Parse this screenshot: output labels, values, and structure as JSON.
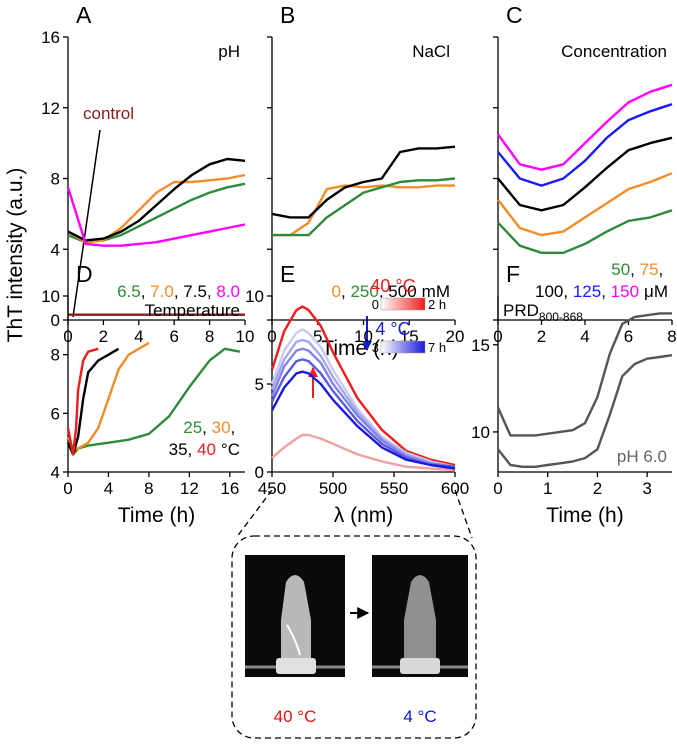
{
  "shared_ylabel": "ThT intensity (a.u.)",
  "shared_xlabel": "Time (h)",
  "chart_data": [
    {
      "type": "line",
      "label": "A",
      "tag": "pH",
      "legend_separator": ", ",
      "x": [
        0,
        1,
        2,
        3,
        4,
        5,
        6,
        7,
        8,
        9,
        10
      ],
      "series": [
        {
          "name": "6.5",
          "color": "#2e8b3a",
          "values": [
            4.8,
            4.4,
            4.5,
            4.8,
            5.3,
            5.8,
            6.3,
            6.8,
            7.2,
            7.5,
            7.7
          ]
        },
        {
          "name": "7.0",
          "color": "#f28c28",
          "values": [
            5.0,
            4.4,
            4.5,
            5.2,
            6.2,
            7.2,
            7.8,
            7.8,
            7.9,
            8.0,
            8.2
          ]
        },
        {
          "name": "7.5",
          "color": "#000000",
          "values": [
            5.0,
            4.5,
            4.6,
            5.0,
            5.6,
            6.5,
            7.4,
            8.2,
            8.8,
            9.1,
            9.0
          ]
        },
        {
          "name": "8.0",
          "color": "#ff00ff",
          "values": [
            7.5,
            4.3,
            4.2,
            4.2,
            4.3,
            4.4,
            4.6,
            4.8,
            5.0,
            5.2,
            5.4
          ]
        },
        {
          "name": "control",
          "color": "#8b1a1a",
          "values": [
            0.3,
            0.3,
            0.3,
            0.3,
            0.3,
            0.3,
            0.3,
            0.3,
            0.3,
            0.3,
            0.3
          ]
        }
      ],
      "xlim": [
        0,
        10
      ],
      "xticks": [
        0,
        2,
        4,
        6,
        8,
        10
      ],
      "ylim": [
        0,
        16
      ],
      "yticks": [
        0,
        4,
        8,
        12,
        16
      ]
    },
    {
      "type": "line",
      "label": "B",
      "tag": "NaCl",
      "legend_separator": ", ",
      "legend_unit": "mM",
      "x": [
        0,
        2,
        4,
        6,
        8,
        10,
        12,
        14,
        16,
        18,
        20
      ],
      "series": [
        {
          "name": "0",
          "color": "#f28c28",
          "values": [
            4.8,
            4.8,
            5.5,
            7.4,
            7.6,
            7.5,
            7.6,
            7.5,
            7.5,
            7.6,
            7.6
          ]
        },
        {
          "name": "250",
          "color": "#2e8b3a",
          "values": [
            4.8,
            4.8,
            4.8,
            5.8,
            6.5,
            7.2,
            7.5,
            7.8,
            7.9,
            7.9,
            8.0
          ]
        },
        {
          "name": "500",
          "color": "#000000",
          "values": [
            6.0,
            5.8,
            5.8,
            6.8,
            7.5,
            7.8,
            8.0,
            9.5,
            9.7,
            9.7,
            9.8
          ]
        }
      ],
      "xlim": [
        0,
        20
      ],
      "xticks": [
        0,
        5,
        10,
        15,
        20
      ],
      "ylim": [
        0,
        16
      ],
      "yticks": [
        0,
        4,
        8,
        12,
        16
      ],
      "ytick_labels": false
    },
    {
      "type": "line",
      "label": "C",
      "tag": "Concentration",
      "legend_separator": ", ",
      "legend_unit": "μM",
      "x": [
        0,
        1,
        2,
        3,
        4,
        5,
        6,
        7,
        8
      ],
      "series": [
        {
          "name": "50",
          "color": "#2e8b3a",
          "values": [
            5.5,
            4.2,
            3.8,
            3.8,
            4.3,
            5.0,
            5.6,
            5.8,
            6.2
          ]
        },
        {
          "name": "75",
          "color": "#f28c28",
          "values": [
            6.8,
            5.2,
            4.8,
            5.0,
            5.8,
            6.6,
            7.4,
            7.8,
            8.3
          ]
        },
        {
          "name": "100",
          "color": "#000000",
          "values": [
            8.0,
            6.5,
            6.2,
            6.5,
            7.5,
            8.6,
            9.6,
            10.0,
            10.3
          ]
        },
        {
          "name": "125",
          "color": "#1a1aff",
          "values": [
            9.5,
            8.0,
            7.6,
            8.0,
            9.0,
            10.3,
            11.3,
            11.8,
            12.2
          ]
        },
        {
          "name": "150",
          "color": "#ff00ff",
          "values": [
            10.5,
            8.8,
            8.5,
            8.8,
            10.0,
            11.2,
            12.3,
            12.9,
            13.3
          ]
        }
      ],
      "xlim": [
        0,
        8
      ],
      "xticks": [
        0,
        2,
        4,
        6,
        8
      ],
      "ylim": [
        0,
        16
      ],
      "yticks": [
        0,
        4,
        8,
        12,
        16
      ],
      "ytick_labels": false
    },
    {
      "type": "line",
      "label": "D",
      "tag": "Temperature",
      "legend_separator": ", ",
      "legend_unit": "°C",
      "xlabel": "Time (h)",
      "series": [
        {
          "name": "25",
          "color": "#2e8b3a",
          "x": [
            0,
            0.5,
            1,
            2,
            4,
            6,
            8,
            10,
            12,
            14,
            15.5,
            17
          ],
          "values": [
            5.0,
            4.6,
            4.8,
            4.9,
            5.0,
            5.1,
            5.3,
            5.9,
            6.9,
            7.8,
            8.2,
            8.1
          ]
        },
        {
          "name": "30",
          "color": "#f28c28",
          "x": [
            0,
            0.5,
            1,
            2,
            3,
            4,
            5,
            6,
            7,
            8
          ],
          "values": [
            5.2,
            4.8,
            4.8,
            5.0,
            5.5,
            6.5,
            7.5,
            8.0,
            8.2,
            8.4
          ]
        },
        {
          "name": "35",
          "color": "#000000",
          "x": [
            0,
            0.5,
            1,
            1.5,
            2,
            3,
            4,
            5
          ],
          "values": [
            5.0,
            4.6,
            5.2,
            6.5,
            7.4,
            7.8,
            8.0,
            8.2
          ]
        },
        {
          "name": "40",
          "color": "#ee1c1c",
          "x": [
            0,
            0.5,
            0.8,
            1,
            1.5,
            2,
            3
          ],
          "values": [
            5.5,
            4.6,
            5.5,
            6.8,
            7.8,
            8.1,
            8.2
          ]
        }
      ],
      "xlim": [
        0,
        17.5
      ],
      "xticks": [
        0,
        4,
        8,
        12,
        16
      ],
      "ylim": [
        4,
        10
      ],
      "yticks": [
        4,
        6,
        8,
        10
      ]
    },
    {
      "type": "line",
      "label": "E",
      "xlabel": "λ (nm)",
      "x": [
        450,
        460,
        470,
        475,
        480,
        490,
        500,
        520,
        540,
        560,
        580,
        600
      ],
      "series": [
        {
          "color": "#ee1c1c",
          "values": [
            5.8,
            8.0,
            9.2,
            9.4,
            9.2,
            8.3,
            6.8,
            4.2,
            2.4,
            1.2,
            0.7,
            0.4
          ]
        },
        {
          "color": "#f0a0a0",
          "values": [
            0.8,
            1.4,
            1.9,
            2.1,
            2.1,
            1.9,
            1.6,
            1.0,
            0.6,
            0.3,
            0.2,
            0.1
          ]
        },
        {
          "color": "#c9c9f5",
          "values": [
            5.0,
            6.9,
            7.9,
            8.1,
            7.9,
            7.1,
            5.8,
            3.6,
            2.0,
            1.1,
            0.6,
            0.3
          ]
        },
        {
          "color": "#a6a6ef",
          "values": [
            4.7,
            6.4,
            7.4,
            7.5,
            7.4,
            6.6,
            5.4,
            3.4,
            1.9,
            1.0,
            0.5,
            0.3
          ]
        },
        {
          "color": "#8383e8",
          "values": [
            4.3,
            6.0,
            6.9,
            7.0,
            6.9,
            6.2,
            5.0,
            3.2,
            1.8,
            0.9,
            0.5,
            0.3
          ]
        },
        {
          "color": "#5a5ae2",
          "values": [
            4.0,
            5.4,
            6.3,
            6.4,
            6.3,
            5.6,
            4.6,
            2.9,
            1.6,
            0.8,
            0.4,
            0.3
          ]
        },
        {
          "color": "#1a1adc",
          "values": [
            3.5,
            4.8,
            5.6,
            5.7,
            5.6,
            5.0,
            4.1,
            2.6,
            1.4,
            0.7,
            0.4,
            0.2
          ]
        }
      ],
      "scale_hot": {
        "title": "40 °C",
        "start": "0",
        "end": "2 h",
        "colors": [
          "#ffffff",
          "#ee1c1c"
        ]
      },
      "scale_cold": {
        "title": "4 °C",
        "start": "3",
        "end": "7 h",
        "colors": [
          "#ffffff",
          "#1a1adc"
        ]
      },
      "xlim": [
        450,
        600
      ],
      "xticks": [
        450,
        500,
        550,
        600
      ],
      "ylim": [
        0,
        10
      ],
      "yticks": [
        0,
        5,
        10
      ]
    },
    {
      "type": "line",
      "label": "F",
      "tag": "PRD",
      "tag_sub": "800-868",
      "note": "pH 6.0",
      "xlabel": "Time (h)",
      "x": [
        0,
        0.25,
        0.5,
        0.75,
        1,
        1.25,
        1.5,
        1.75,
        2,
        2.25,
        2.5,
        2.75,
        3,
        3.25,
        3.5
      ],
      "series": [
        {
          "color": "#555555",
          "values": [
            11.4,
            9.8,
            9.8,
            9.8,
            9.9,
            10.0,
            10.1,
            10.5,
            12.0,
            14.5,
            16.2,
            16.6,
            16.7,
            16.8,
            16.8
          ]
        },
        {
          "color": "#555555",
          "values": [
            9.0,
            8.1,
            8.0,
            8.0,
            8.1,
            8.2,
            8.3,
            8.5,
            9.0,
            11.0,
            13.2,
            13.9,
            14.2,
            14.3,
            14.4
          ]
        }
      ],
      "xlim": [
        0,
        3.5
      ],
      "xticks": [
        0,
        1,
        2,
        3
      ],
      "ylim": [
        7.7,
        17.8
      ],
      "yticks": [
        10,
        15
      ]
    }
  ],
  "photos": [
    {
      "label": "40 °C",
      "color": "#e01010"
    },
    {
      "label": "4 °C",
      "color": "#1010e0"
    }
  ]
}
